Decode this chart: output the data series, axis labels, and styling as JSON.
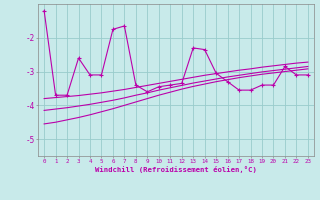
{
  "xlabel": "Windchill (Refroidissement éolien,°C)",
  "bg_color": "#c8eaea",
  "line_color": "#bb00aa",
  "grid_color": "#99cccc",
  "x_data": [
    0,
    1,
    2,
    3,
    4,
    5,
    6,
    7,
    8,
    9,
    10,
    11,
    12,
    13,
    14,
    15,
    16,
    17,
    18,
    19,
    20,
    21,
    22,
    23
  ],
  "y_main": [
    -1.2,
    -3.7,
    -3.7,
    -2.6,
    -3.1,
    -3.1,
    -1.75,
    -1.65,
    -3.4,
    -3.6,
    -3.45,
    -3.4,
    -3.35,
    -2.3,
    -2.35,
    -3.05,
    -3.3,
    -3.55,
    -3.55,
    -3.4,
    -3.4,
    -2.85,
    -3.1,
    -3.1
  ],
  "y_line1": [
    -3.8,
    -3.77,
    -3.74,
    -3.71,
    -3.67,
    -3.63,
    -3.58,
    -3.53,
    -3.47,
    -3.41,
    -3.35,
    -3.29,
    -3.23,
    -3.17,
    -3.11,
    -3.06,
    -3.01,
    -2.96,
    -2.92,
    -2.87,
    -2.83,
    -2.79,
    -2.75,
    -2.72
  ],
  "y_line2": [
    -4.15,
    -4.11,
    -4.07,
    -4.02,
    -3.97,
    -3.91,
    -3.85,
    -3.78,
    -3.7,
    -3.63,
    -3.55,
    -3.48,
    -3.41,
    -3.34,
    -3.28,
    -3.22,
    -3.16,
    -3.11,
    -3.06,
    -3.01,
    -2.97,
    -2.93,
    -2.89,
    -2.85
  ],
  "y_line3": [
    -4.55,
    -4.5,
    -4.43,
    -4.36,
    -4.28,
    -4.19,
    -4.1,
    -4.0,
    -3.9,
    -3.8,
    -3.7,
    -3.61,
    -3.52,
    -3.44,
    -3.37,
    -3.3,
    -3.24,
    -3.18,
    -3.13,
    -3.08,
    -3.04,
    -3.0,
    -2.96,
    -2.92
  ],
  "ylim": [
    -5.5,
    -1.0
  ],
  "xlim": [
    -0.5,
    23.5
  ],
  "yticks": [
    -5,
    -4,
    -3,
    -2
  ],
  "xticks": [
    0,
    1,
    2,
    3,
    4,
    5,
    6,
    7,
    8,
    9,
    10,
    11,
    12,
    13,
    14,
    15,
    16,
    17,
    18,
    19,
    20,
    21,
    22,
    23
  ]
}
